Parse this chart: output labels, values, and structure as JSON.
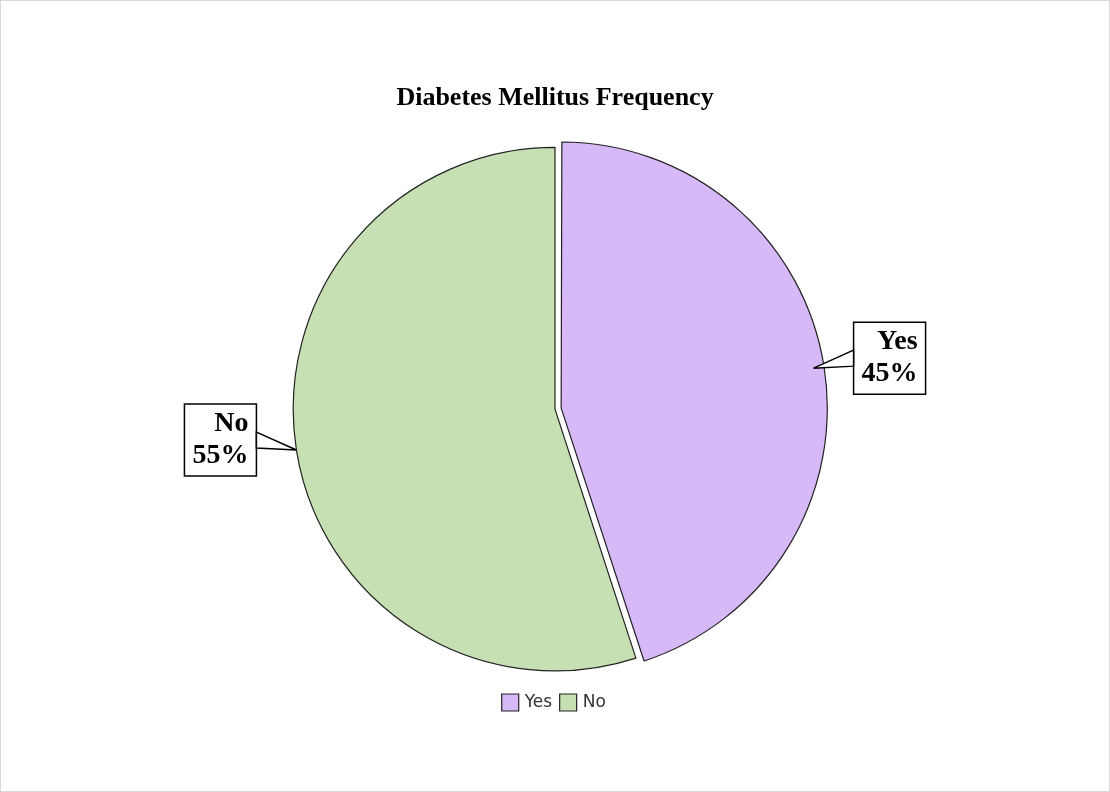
{
  "chart_data": {
    "type": "pie",
    "title": "Diabetes Mellitus Frequency",
    "categories": [
      "Yes",
      "No"
    ],
    "values": [
      45,
      55
    ],
    "colors": [
      "#d7b9f8",
      "#c6e0b4"
    ],
    "value_labels": [
      "45%",
      "55%"
    ],
    "legend": "bottom"
  }
}
